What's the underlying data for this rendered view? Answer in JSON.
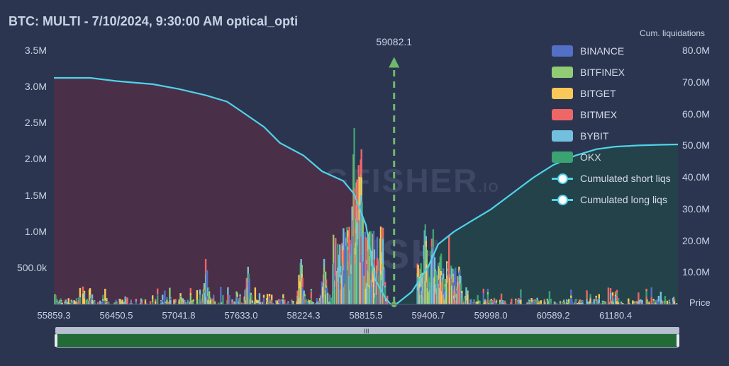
{
  "title": "BTC: MULTI - 7/10/2024, 9:30:00 AM optical_opti",
  "right_axis_title": "Cum. liquidations",
  "price_label": "Price",
  "marker_label": "59082.1",
  "watermark": {
    "brand": "THE KINGFISHER",
    "suffix": ".IO"
  },
  "scrollbar": {
    "grip": "III"
  },
  "colors": {
    "background": "#2b3550",
    "short_area": "#4a2f48",
    "long_area": "#24424a",
    "cum_line": "#4fd3e8",
    "marker": "#6fb86a"
  },
  "chart_data": {
    "type": "bar",
    "x_ticks": [
      "55859.3",
      "56450.5",
      "57041.8",
      "57633.0",
      "58224.3",
      "58815.5",
      "59406.7",
      "59998.0",
      "60589.2",
      "61180.4"
    ],
    "x_range": [
      55859.3,
      61771.0
    ],
    "y_left_ticks": [
      "3.5M",
      "3.0M",
      "2.5M",
      "2.0M",
      "1.5M",
      "1.0M",
      "500.0k"
    ],
    "y_left_range": [
      0,
      3500000
    ],
    "y_right_ticks": [
      "80.0M",
      "70.0M",
      "60.0M",
      "50.0M",
      "40.0M",
      "30.0M",
      "20.0M",
      "10.0M"
    ],
    "y_right_range": [
      0,
      80000000
    ],
    "current_price": 59082.1,
    "legend": [
      {
        "name": "BINANCE",
        "color": "#5470c6"
      },
      {
        "name": "BITFINEX",
        "color": "#91cc75"
      },
      {
        "name": "BITGET",
        "color": "#fac858"
      },
      {
        "name": "BITMEX",
        "color": "#ee6666"
      },
      {
        "name": "BYBIT",
        "color": "#73c0de"
      },
      {
        "name": "OKX",
        "color": "#3ba272"
      },
      {
        "name": "Cumulated short liqs",
        "color": "#4fd3e8"
      },
      {
        "name": "Cumulated long liqs",
        "color": "#4fd3e8"
      }
    ],
    "cumulated_short_liqs": {
      "x": [
        55859.3,
        56200,
        56450.5,
        56800,
        57041.8,
        57300,
        57500,
        57633.0,
        57850,
        58000,
        58224.3,
        58400,
        58600,
        58700,
        58815.5,
        58900,
        59000,
        59050
      ],
      "y": [
        71.5,
        71.5,
        70.5,
        69.5,
        68,
        66,
        64,
        61,
        56,
        51,
        47,
        42,
        39,
        35,
        25,
        8,
        2,
        0
      ]
    },
    "cumulated_long_liqs": {
      "x": [
        59100,
        59250,
        59406.7,
        59500,
        59650,
        59800,
        59998.0,
        60200,
        60400,
        60589.2,
        60800,
        61000,
        61180.4,
        61400,
        61600,
        61771.0
      ],
      "y": [
        0,
        4,
        12,
        19,
        23,
        26,
        30,
        35,
        40,
        44,
        47,
        49,
        49.8,
        50.2,
        50.4,
        50.5
      ]
    },
    "bar_clusters": [
      {
        "x": 58700,
        "total": 3100000
      },
      {
        "x": 58760,
        "total": 3050000
      },
      {
        "x": 58740,
        "total": 2800000
      },
      {
        "x": 58650,
        "total": 1550000
      },
      {
        "x": 58600,
        "total": 1200000
      },
      {
        "x": 58850,
        "total": 1200000
      },
      {
        "x": 58900,
        "total": 620000
      },
      {
        "x": 59380,
        "total": 1380000
      },
      {
        "x": 59450,
        "total": 1220000
      },
      {
        "x": 59520,
        "total": 1350000
      },
      {
        "x": 59600,
        "total": 1100000
      },
      {
        "x": 59700,
        "total": 600000
      },
      {
        "x": 57300,
        "total": 700000
      },
      {
        "x": 57700,
        "total": 560000
      },
      {
        "x": 58200,
        "total": 700000
      },
      {
        "x": 58420,
        "total": 720000
      }
    ]
  }
}
